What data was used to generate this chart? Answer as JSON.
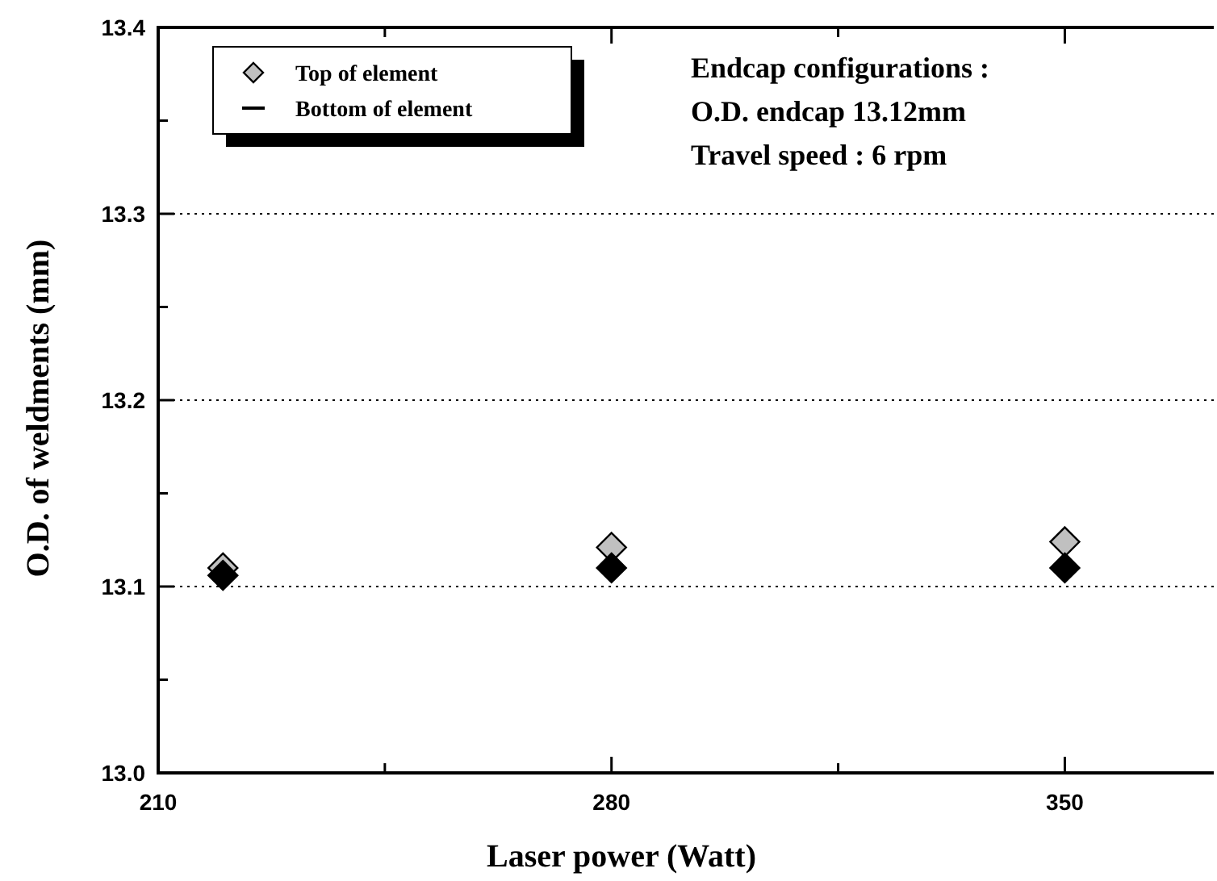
{
  "chart_data": {
    "type": "scatter",
    "xlabel": "Laser power (Watt)",
    "ylabel": "O.D. of weldments (mm)",
    "x": [
      220,
      280,
      350
    ],
    "series": [
      {
        "name": "Top of element",
        "color": "#c0c0c0",
        "values": [
          13.11,
          13.121,
          13.124
        ]
      },
      {
        "name": "Bottom of element",
        "color": "#000000",
        "values": [
          13.106,
          13.11,
          13.11
        ]
      }
    ],
    "xlim": [
      210,
      373
    ],
    "xticks": [
      210,
      {
        "value": 245,
        "label": null
      },
      280,
      {
        "value": 315,
        "label": null
      },
      350
    ],
    "ylim": [
      13.0,
      13.4
    ],
    "yticks": [
      "13.0",
      {
        "value": 13.05,
        "label": null
      },
      13.1,
      {
        "value": 13.15,
        "label": null
      },
      13.2,
      {
        "value": 13.25,
        "label": null
      },
      13.3,
      {
        "value": 13.35,
        "label": null
      },
      13.4
    ],
    "grid": "y",
    "legend": "top left",
    "marker": "diamond",
    "annotations": [
      "Endcap configurations :",
      "O.D. endcap 13.12mm",
      "Travel speed : 6 rpm"
    ]
  }
}
